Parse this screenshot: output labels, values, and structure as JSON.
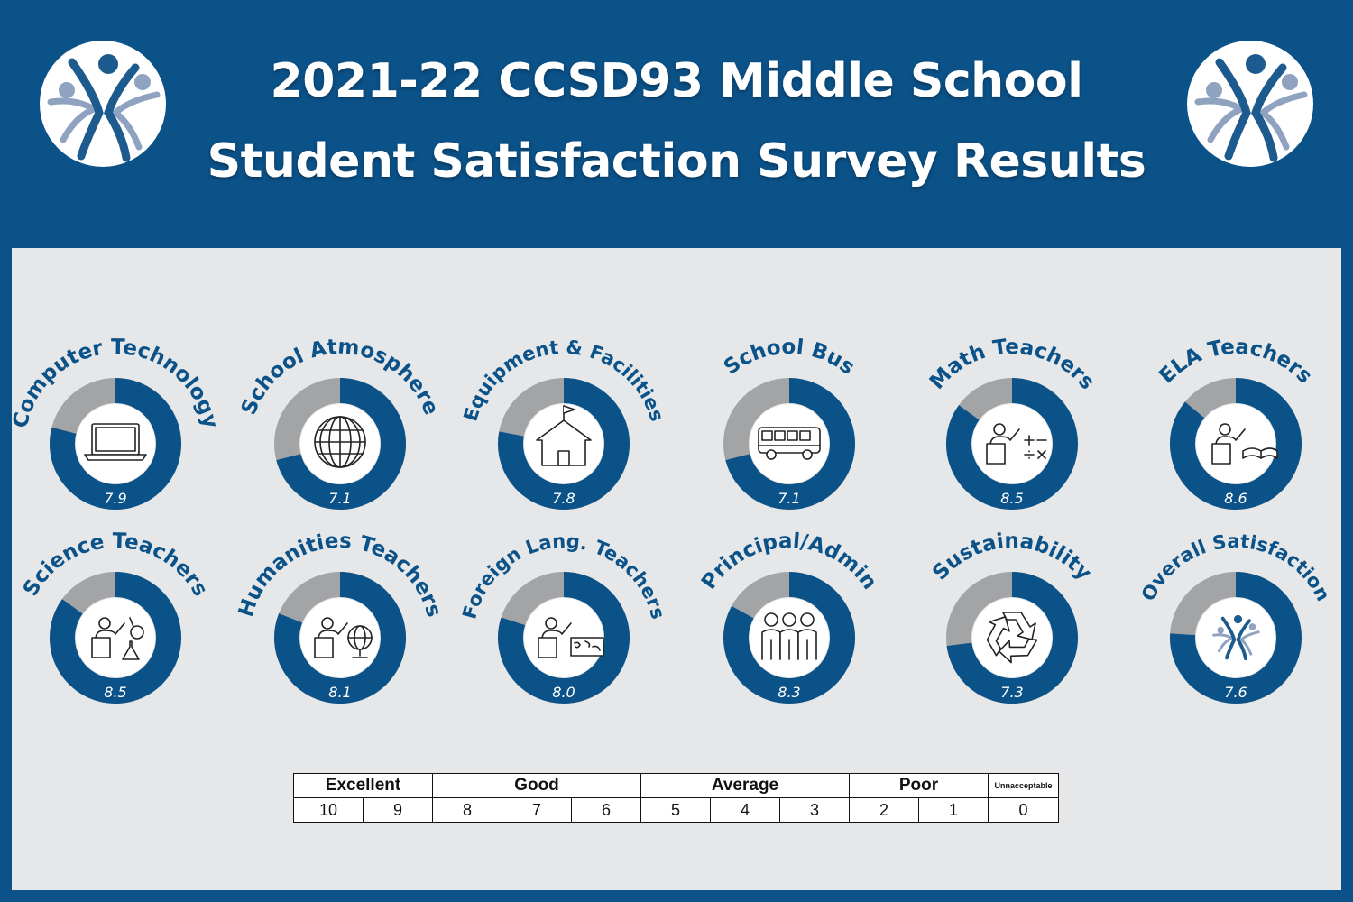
{
  "header": {
    "title_line1": "2021-22 CCSD93 Middle School",
    "title_line2": "Student Satisfaction Survey Results"
  },
  "colors": {
    "header_bg": "#0b5289",
    "panel_bg": "#e6e7e9",
    "donut_filled": "#0b5289",
    "donut_remainder": "#a3a4a6",
    "logo_dark": "#1d5a8e",
    "logo_light": "#8fa3c1"
  },
  "chart_data": {
    "type": "donut",
    "max_score": 10,
    "items": [
      {
        "label": "Computer Technology",
        "value": 7.9,
        "icon": "laptop-icon"
      },
      {
        "label": "School Atmosphere",
        "value": 7.1,
        "icon": "globe-icon"
      },
      {
        "label": "Equipment & Facilities",
        "value": 7.8,
        "icon": "schoolhouse-icon"
      },
      {
        "label": "School Bus",
        "value": 7.1,
        "icon": "bus-icon"
      },
      {
        "label": "Math Teachers",
        "value": 8.5,
        "icon": "math-teacher-icon"
      },
      {
        "label": "ELA Teachers",
        "value": 8.6,
        "icon": "ela-teacher-icon"
      },
      {
        "label": "Science Teachers",
        "value": 8.5,
        "icon": "science-teacher-icon"
      },
      {
        "label": "Humanities Teachers",
        "value": 8.1,
        "icon": "humanities-teacher-icon"
      },
      {
        "label": "Foreign Lang. Teachers",
        "value": 8.0,
        "icon": "foreign-language-teacher-icon"
      },
      {
        "label": "Principal/Admin",
        "value": 8.3,
        "icon": "people-group-icon"
      },
      {
        "label": "Sustainability",
        "value": 7.3,
        "icon": "recycle-icon"
      },
      {
        "label": "Overall Satisfaction",
        "value": 7.6,
        "icon": "district-logo-icon"
      }
    ]
  },
  "scale_legend": {
    "categories": [
      {
        "label": "Excellent",
        "span": 2
      },
      {
        "label": "Good",
        "span": 3
      },
      {
        "label": "Average",
        "span": 3
      },
      {
        "label": "Poor",
        "span": 2
      },
      {
        "label": "Unnacceptable",
        "span": 1
      }
    ],
    "numbers": [
      "10",
      "9",
      "8",
      "7",
      "6",
      "5",
      "4",
      "3",
      "2",
      "1",
      "0"
    ]
  }
}
